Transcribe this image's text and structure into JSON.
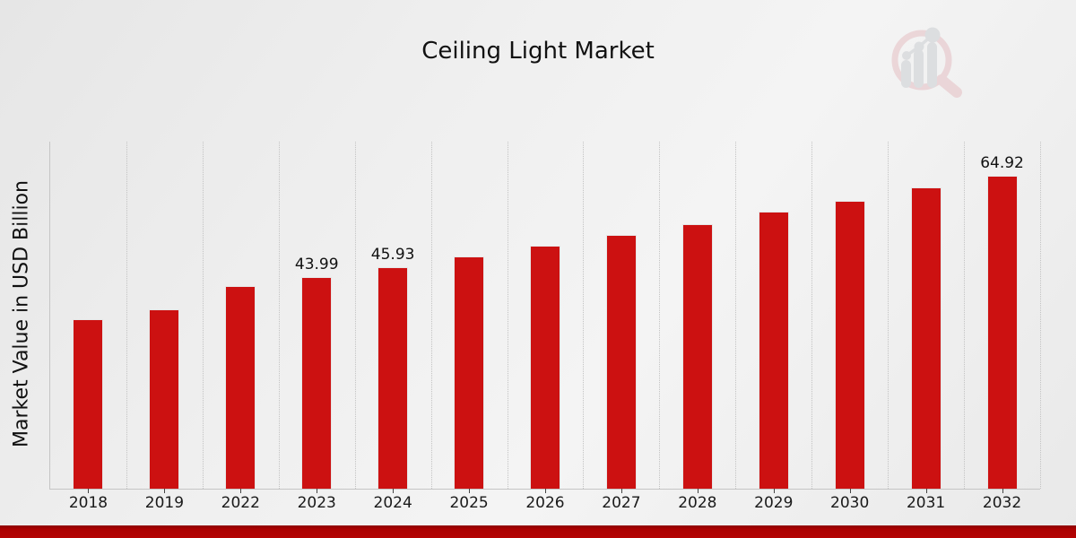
{
  "page": {
    "title": "Ceiling Light Market"
  },
  "chart_data": {
    "type": "bar",
    "title": "Ceiling Light Market",
    "xlabel": "",
    "ylabel": "Market Value in USD Billion",
    "categories": [
      "2018",
      "2019",
      "2022",
      "2023",
      "2024",
      "2025",
      "2026",
      "2027",
      "2028",
      "2029",
      "2030",
      "2031",
      "2032"
    ],
    "values": [
      35.2,
      37.2,
      42.1,
      43.99,
      45.93,
      48.2,
      50.4,
      52.7,
      54.9,
      57.4,
      59.8,
      62.6,
      64.92
    ],
    "bar_labels": [
      "",
      "",
      "",
      "43.99",
      "45.93",
      "",
      "",
      "",
      "",
      "",
      "",
      "",
      "64.92"
    ],
    "ylim": [
      0,
      72
    ],
    "grid": "vertical-dotted-between-categories",
    "legend_position": "none",
    "bar_color": "#cc1111"
  },
  "branding": {
    "logo_icon": "magnifier-bar-chart-logo",
    "footer_bar_color": "#ab0101"
  }
}
